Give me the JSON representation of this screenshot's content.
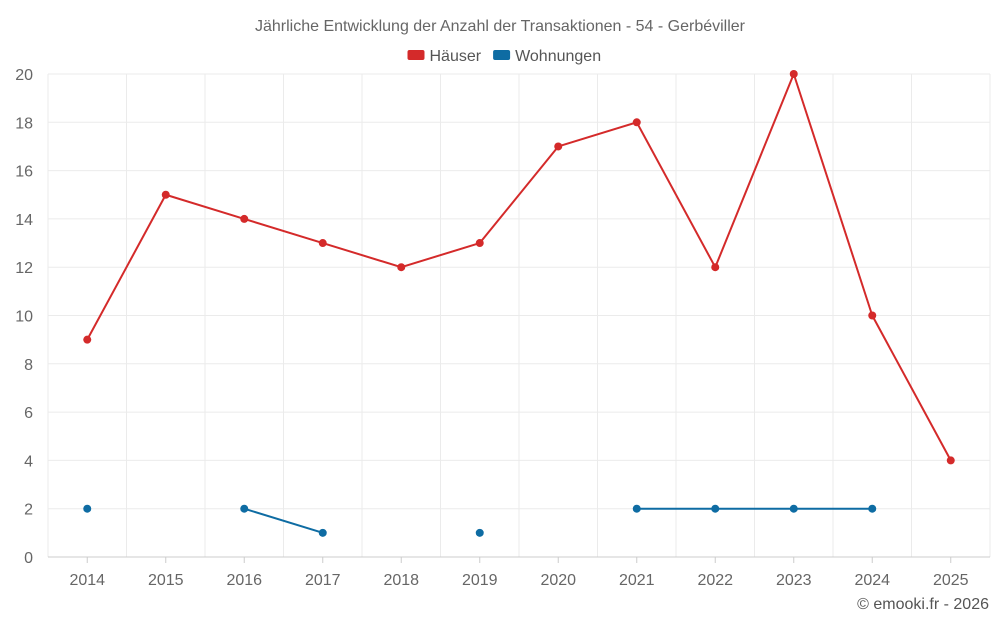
{
  "chart_data": {
    "type": "line",
    "title": "Jährliche Entwicklung der Anzahl der Transaktionen - 54 - Gerbéviller",
    "xlabel": "",
    "ylabel": "",
    "categories": [
      "2014",
      "2015",
      "2016",
      "2017",
      "2018",
      "2019",
      "2020",
      "2021",
      "2022",
      "2023",
      "2024",
      "2025"
    ],
    "ylim": [
      0,
      20
    ],
    "yticks": [
      0,
      2,
      4,
      6,
      8,
      10,
      12,
      14,
      16,
      18,
      20
    ],
    "grid": true,
    "legend_position": "top-center",
    "series": [
      {
        "name": "Häuser",
        "color": "#d42a2a",
        "values": [
          9,
          15,
          14,
          13,
          12,
          13,
          17,
          18,
          12,
          20,
          10,
          4
        ]
      },
      {
        "name": "Wohnungen",
        "color": "#0e6ca3",
        "values": [
          2,
          null,
          2,
          1,
          null,
          1,
          null,
          2,
          2,
          2,
          2,
          null
        ]
      }
    ]
  },
  "credit": "© emooki.fr - 2026"
}
